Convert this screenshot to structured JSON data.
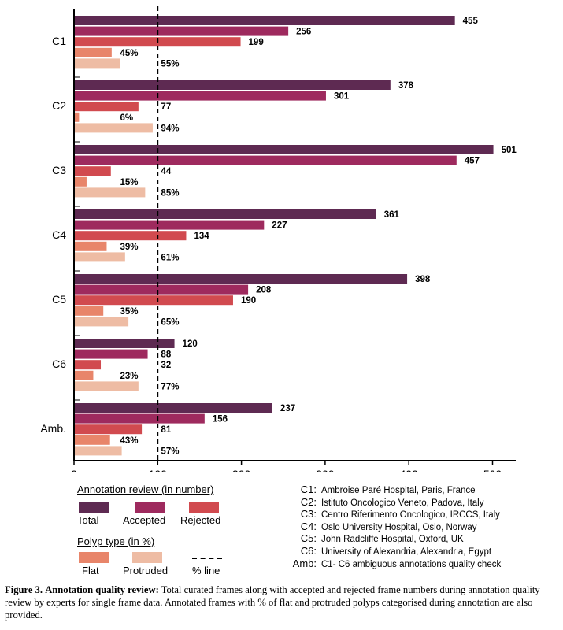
{
  "chart_data": {
    "type": "bar",
    "orientation": "horizontal",
    "categories": [
      "C1",
      "C2",
      "C3",
      "C4",
      "C5",
      "C6",
      "Amb."
    ],
    "xlim": [
      0,
      520
    ],
    "xticks": [
      0,
      100,
      200,
      300,
      400,
      500
    ],
    "grid": false,
    "reference_line": {
      "x": 100,
      "style": "dashed",
      "label": "% line"
    },
    "series": [
      {
        "name": "Total",
        "group": "Annotation review (in number)",
        "color": "#5e2a52",
        "values": [
          455,
          378,
          501,
          361,
          398,
          120,
          237
        ],
        "labels": [
          "455",
          "378",
          "501",
          "361",
          "398",
          "120",
          "237"
        ]
      },
      {
        "name": "Accepted",
        "group": "Annotation review (in number)",
        "color": "#9e2a5e",
        "values": [
          256,
          301,
          457,
          227,
          208,
          88,
          156
        ],
        "labels": [
          "256",
          "301",
          "457",
          "227",
          "208",
          "88",
          "156"
        ]
      },
      {
        "name": "Rejected",
        "group": "Annotation review (in number)",
        "color": "#d14a4f",
        "values": [
          199,
          77,
          44,
          134,
          190,
          32,
          81
        ],
        "labels": [
          "199",
          "77",
          "44",
          "134",
          "190",
          "32",
          "81"
        ]
      },
      {
        "name": "Flat",
        "group": "Polyp type (in %)",
        "color": "#e8856a",
        "values": [
          45,
          6,
          15,
          39,
          35,
          23,
          43
        ],
        "labels": [
          "45%",
          "6%",
          "15%",
          "39%",
          "35%",
          "23%",
          "43%"
        ]
      },
      {
        "name": "Protruded",
        "group": "Polyp type (in %)",
        "color": "#eebca4",
        "values": [
          55,
          94,
          85,
          61,
          65,
          77,
          57
        ],
        "labels": [
          "55%",
          "94%",
          "85%",
          "61%",
          "65%",
          "77%",
          "57%"
        ]
      }
    ]
  },
  "legend": {
    "review_title": "Annotation review (in number)",
    "polyp_title": "Polyp type (in %)",
    "total": "Total",
    "accepted": "Accepted",
    "rejected": "Rejected",
    "flat": "Flat",
    "protruded": "Protruded",
    "pct_line": "% line"
  },
  "sites": [
    {
      "code": "C1:",
      "name": "Ambroise Paré Hospital, Paris, France"
    },
    {
      "code": "C2:",
      "name": "Istituto Oncologico Veneto, Padova, Italy"
    },
    {
      "code": "C3:",
      "name": "Centro Riferimento Oncologico, IRCCS, Italy"
    },
    {
      "code": "C4:",
      "name": "Oslo University Hospital, Oslo, Norway"
    },
    {
      "code": "C5:",
      "name": "John Radcliffe Hospital, Oxford, UK"
    },
    {
      "code": "C6:",
      "name": "University of Alexandria, Alexandria, Egypt"
    },
    {
      "code": "Amb:",
      "name": "C1- C6 ambiguous annotations quality check"
    }
  ],
  "caption": {
    "label": "Figure 3.",
    "bold_text": "Annotation quality review:",
    "text": "Total curated frames along with accepted and rejected frame numbers during annotation quality review by experts for single frame data. Annotated frames with % of flat and protruded polyps categorised during annotation are also provided."
  }
}
